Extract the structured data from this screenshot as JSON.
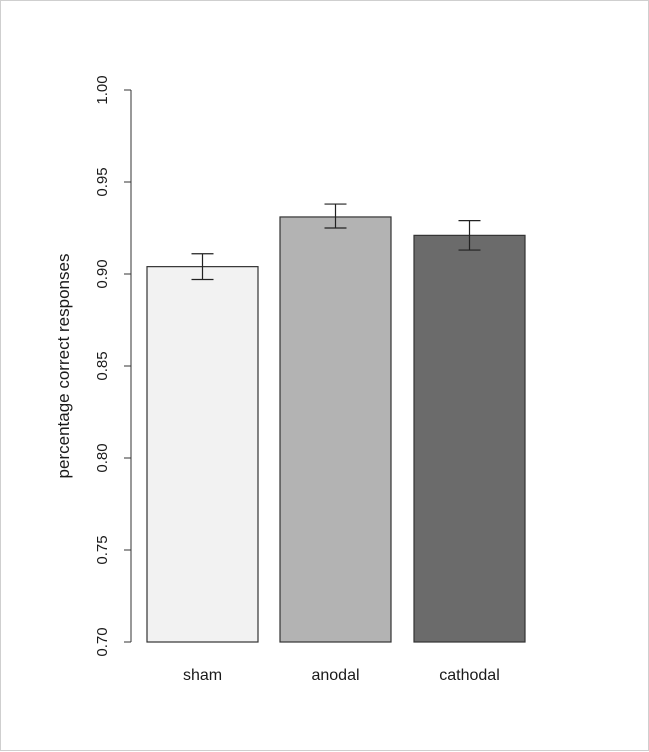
{
  "chart_data": {
    "type": "bar",
    "categories": [
      "sham",
      "anodal",
      "cathodal"
    ],
    "values": [
      0.904,
      0.931,
      0.921
    ],
    "error_low": [
      0.897,
      0.925,
      0.913
    ],
    "error_high": [
      0.911,
      0.938,
      0.929
    ],
    "bar_colors": [
      "#f2f2f2",
      "#b3b3b3",
      "#6b6b6b"
    ],
    "bar_outline": "#333333",
    "ylabel": "percentage correct responses",
    "xlabel": "",
    "title": "",
    "ylim": [
      0.7,
      1.0
    ],
    "y_ticks": [
      0.7,
      0.75,
      0.8,
      0.85,
      0.9,
      0.95,
      1.0
    ],
    "y_tick_labels": [
      "0.70",
      "0.75",
      "0.80",
      "0.85",
      "0.90",
      "0.95",
      "1.00"
    ],
    "grid": false,
    "legend": "none"
  }
}
